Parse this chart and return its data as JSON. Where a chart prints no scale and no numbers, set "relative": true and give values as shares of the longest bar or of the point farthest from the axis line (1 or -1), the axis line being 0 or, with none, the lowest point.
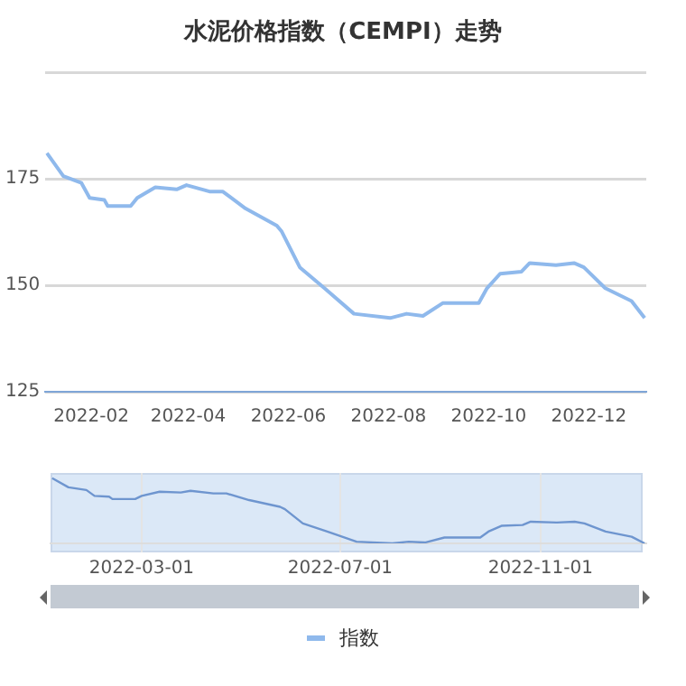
{
  "chart_data": [
    {
      "type": "line",
      "title": "水泥价格指数（CEMPI）走势",
      "legend": "bottom",
      "grid": "y",
      "marker": "none",
      "x": [
        "2022-01-05",
        "2022-01-15",
        "2022-01-26",
        "2022-01-31",
        "2022-02-09",
        "2022-02-11",
        "2022-02-25",
        "2022-03-01",
        "2022-03-12",
        "2022-03-25",
        "2022-03-31",
        "2022-04-14",
        "2022-04-22",
        "2022-05-06",
        "2022-05-25",
        "2022-05-28",
        "2022-06-08",
        "2022-06-23",
        "2022-07-11",
        "2022-08-02",
        "2022-08-12",
        "2022-08-22",
        "2022-09-03",
        "2022-09-25",
        "2022-09-30",
        "2022-10-08",
        "2022-10-21",
        "2022-10-26",
        "2022-11-11",
        "2022-11-22",
        "2022-11-28",
        "2022-12-11",
        "2022-12-27",
        "2023-01-04"
      ],
      "series": [
        {
          "name": "指数",
          "color": "#8fb9ec",
          "values": [
            181,
            175.6,
            174,
            170.5,
            170,
            168.6,
            168.6,
            170.5,
            173,
            172.5,
            173.5,
            172,
            172,
            168,
            164,
            162.6,
            154.2,
            149.3,
            143.3,
            142.3,
            143.3,
            142.8,
            145.8,
            145.8,
            149.3,
            152.7,
            153.2,
            155.2,
            154.7,
            155.2,
            154.2,
            149.3,
            146.3,
            142.3
          ]
        }
      ],
      "xlim": [
        "2022-01-04",
        "2023-01-05"
      ],
      "xticks": [
        {
          "value": "2022-02-01",
          "label": "2022-02"
        },
        {
          "value": "2022-04-01",
          "label": "2022-04"
        },
        {
          "value": "2022-06-01",
          "label": "2022-06"
        },
        {
          "value": "2022-08-01",
          "label": "2022-08"
        },
        {
          "value": "2022-10-01",
          "label": "2022-10"
        },
        {
          "value": "2022-12-01",
          "label": "2022-12"
        }
      ],
      "ylim": [
        125,
        200
      ],
      "yticks": [
        125,
        150,
        175,
        {
          "value": 200,
          "label": null
        }
      ]
    },
    {
      "type": "line",
      "grid": "x",
      "marker": "none",
      "tick_labels": "x",
      "x": [
        "2022-01-05",
        "2022-01-15",
        "2022-01-26",
        "2022-01-31",
        "2022-02-09",
        "2022-02-11",
        "2022-02-25",
        "2022-03-01",
        "2022-03-12",
        "2022-03-25",
        "2022-03-31",
        "2022-04-14",
        "2022-04-22",
        "2022-05-06",
        "2022-05-25",
        "2022-05-28",
        "2022-06-08",
        "2022-06-23",
        "2022-07-11",
        "2022-08-02",
        "2022-08-12",
        "2022-08-22",
        "2022-09-03",
        "2022-09-25",
        "2022-09-30",
        "2022-10-08",
        "2022-10-21",
        "2022-10-26",
        "2022-11-11",
        "2022-11-22",
        "2022-11-28",
        "2022-12-11",
        "2022-12-27",
        "2023-01-04"
      ],
      "series": [
        {
          "color": "#6e95cf",
          "values": [
            1,
            0.86,
            0.819,
            0.729,
            0.716,
            0.68,
            0.68,
            0.729,
            0.793,
            0.78,
            0.806,
            0.767,
            0.767,
            0.664,
            0.561,
            0.525,
            0.307,
            0.181,
            0.026,
            0,
            0.026,
            0.013,
            0.09,
            0.09,
            0.181,
            0.269,
            0.282,
            0.333,
            0.32,
            0.333,
            0.307,
            0.181,
            0.103,
            0
          ]
        }
      ],
      "xlim": [
        "2022-01-04",
        "2023-01-05"
      ],
      "xticks": [
        "2022-03-01",
        "2022-07-01",
        "2022-11-01"
      ],
      "relative": true
    }
  ]
}
